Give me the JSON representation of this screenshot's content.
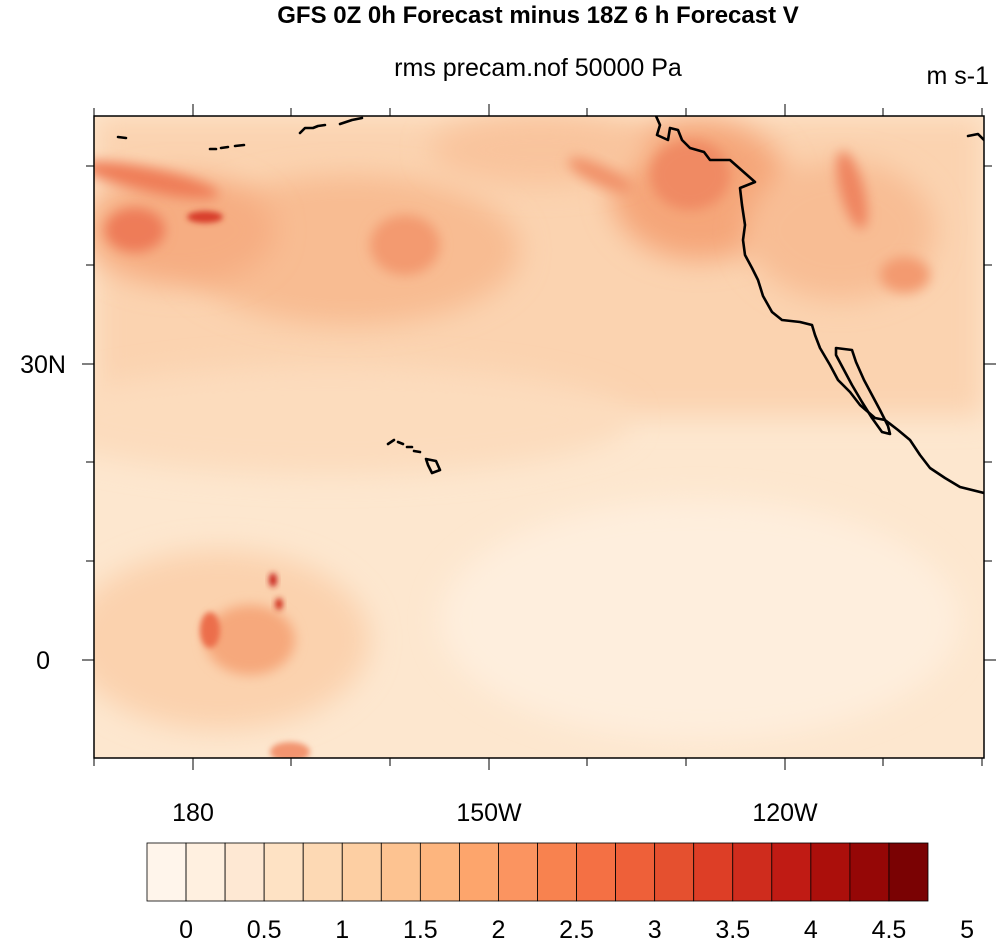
{
  "title": "GFS 0Z 0h Forecast minus 18Z 6 h Forecast V",
  "subtitle": "rms precam.nof 50000 Pa",
  "units": "m s-1",
  "map": {
    "lon_ticks": [
      "180",
      "150W",
      "120W"
    ],
    "lat_ticks": [
      "30N",
      "0"
    ],
    "lon_range_deg": [
      170,
      260
    ],
    "lat_range_deg": [
      -10,
      55
    ],
    "overlay": "coastlines",
    "field_colors": {
      "ocean_low": "#fde5cb",
      "tropics": "#fcd9b6",
      "midlat": "#f9bf95",
      "storm": "#ef7d55",
      "peak": "#c51b0f"
    }
  },
  "colorbar": {
    "labels": [
      "0",
      "0.5",
      "1",
      "1.5",
      "2",
      "2.5",
      "3",
      "3.5",
      "4",
      "4.5",
      "5"
    ],
    "colors": [
      "#fff5eb",
      "#fff0e0",
      "#fee8d3",
      "#fee2c4",
      "#fdd9b4",
      "#fdcfa3",
      "#fdc391",
      "#fdb57e",
      "#fda56c",
      "#fb9460",
      "#f8824f",
      "#f47044",
      "#ee6039",
      "#e5502f",
      "#dd3e26",
      "#cf2c1d",
      "#c01b14",
      "#ab0f0b",
      "#950706",
      "#7a0203"
    ]
  }
}
